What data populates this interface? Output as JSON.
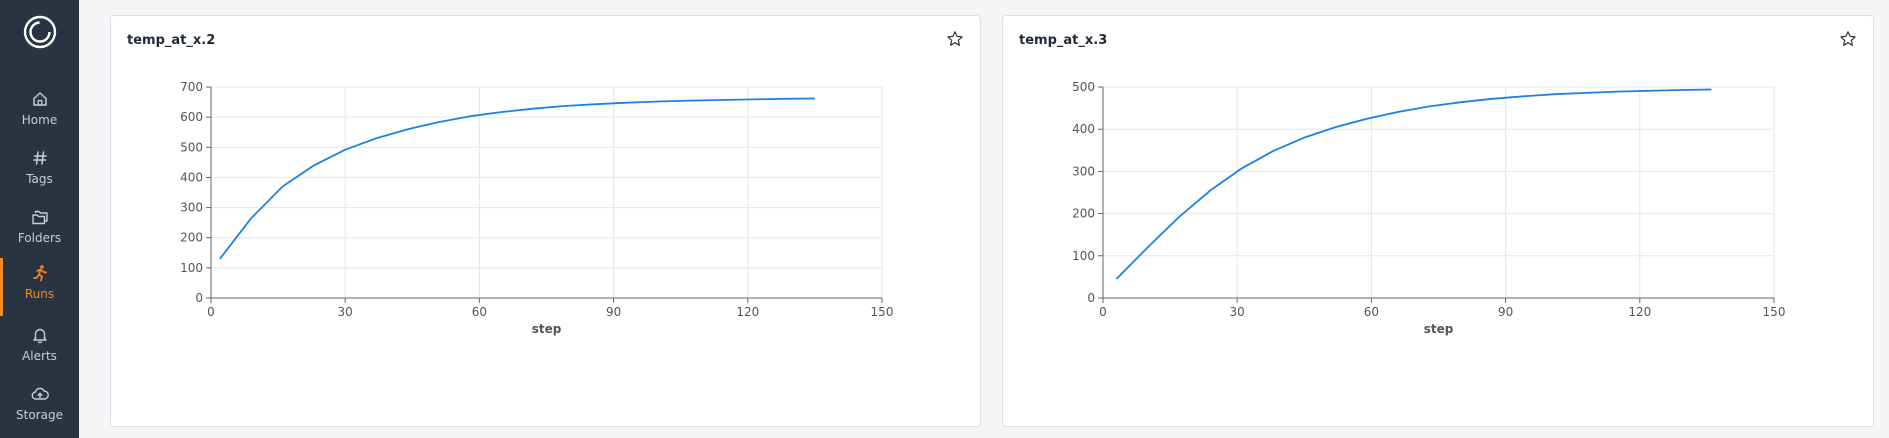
{
  "sidebar": {
    "items": [
      {
        "label": "Home",
        "icon": "home-icon"
      },
      {
        "label": "Tags",
        "icon": "hash-icon"
      },
      {
        "label": "Folders",
        "icon": "folders-icon"
      },
      {
        "label": "Runs",
        "icon": "runner-icon",
        "active": true
      },
      {
        "label": "Alerts",
        "icon": "bell-icon"
      },
      {
        "label": "Storage",
        "icon": "cloud-upload-icon"
      }
    ],
    "accent": "#f08a24"
  },
  "line_color": "#1a82e6",
  "chart_data": [
    {
      "type": "line",
      "title": "temp_at_x.2",
      "xlabel": "step",
      "ylabel": "",
      "xlim": [
        0,
        150
      ],
      "ylim": [
        0,
        700
      ],
      "xticks": [
        0,
        30,
        60,
        90,
        120,
        150
      ],
      "yticks": [
        0,
        100,
        200,
        300,
        400,
        500,
        600,
        700
      ],
      "grid": true,
      "x": [
        2,
        9,
        16,
        23,
        30,
        37,
        44,
        51,
        58,
        65,
        72,
        79,
        86,
        93,
        100,
        107,
        114,
        121,
        128,
        135
      ],
      "y": [
        130,
        265,
        370,
        440,
        492,
        530,
        560,
        584,
        603,
        617,
        628,
        637,
        643,
        648,
        652,
        655,
        657,
        659,
        661,
        662
      ]
    },
    {
      "type": "line",
      "title": "temp_at_x.3",
      "xlabel": "step",
      "ylabel": "",
      "xlim": [
        0,
        150
      ],
      "ylim": [
        0,
        500
      ],
      "xticks": [
        0,
        30,
        60,
        90,
        120,
        150
      ],
      "yticks": [
        0,
        100,
        200,
        300,
        400,
        500
      ],
      "grid": true,
      "x": [
        3,
        10,
        17,
        24,
        31,
        38,
        45,
        52,
        59,
        66,
        73,
        80,
        87,
        94,
        101,
        108,
        115,
        122,
        129,
        136
      ],
      "y": [
        45,
        120,
        192,
        255,
        307,
        348,
        380,
        405,
        425,
        441,
        454,
        464,
        472,
        478,
        483,
        486,
        489,
        491,
        493,
        494
      ]
    }
  ]
}
